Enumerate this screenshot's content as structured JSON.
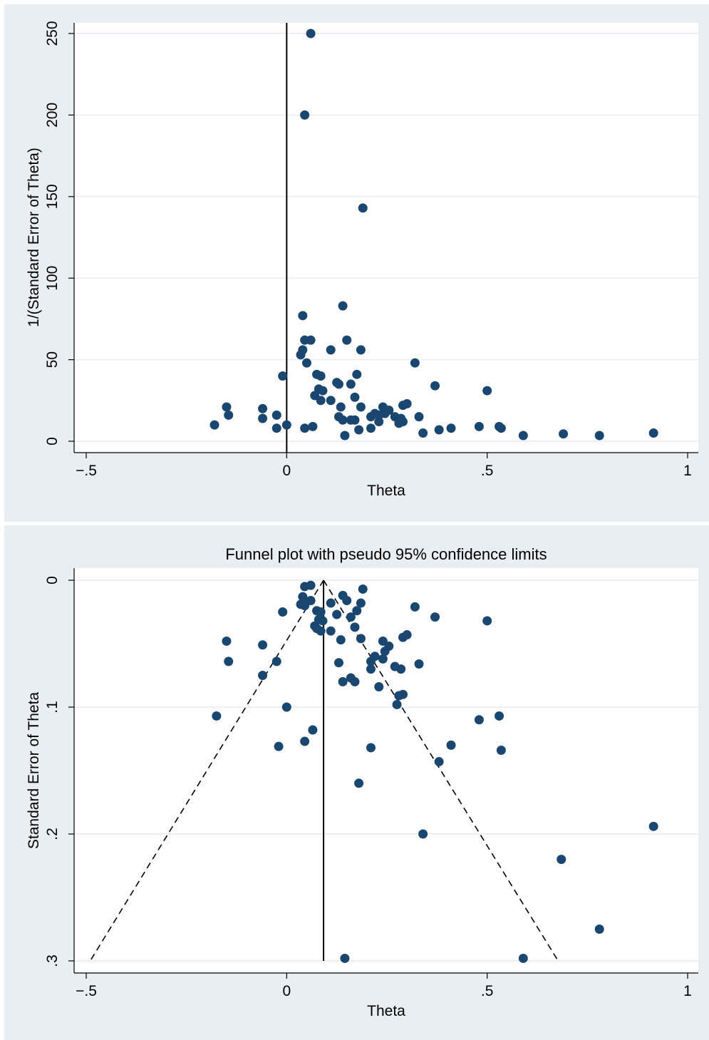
{
  "chart_data": [
    {
      "type": "scatter",
      "title": "",
      "xlabel": "Theta",
      "ylabel": "1/(Standard Error of Theta)",
      "xlim": [
        -0.5,
        1
      ],
      "ylim": [
        0,
        250
      ],
      "xticks": [
        -0.5,
        0,
        0.5,
        1
      ],
      "xtick_labels": [
        "−.5",
        "0",
        ".5",
        "1"
      ],
      "yticks": [
        0,
        50,
        100,
        150,
        200,
        250
      ],
      "ytick_labels": [
        "0",
        "50",
        "100",
        "150",
        "200",
        "250"
      ],
      "grid": true,
      "reference_line_x": 0,
      "marker_color": "#1a476f",
      "points": [
        {
          "x": 0.06,
          "y": 250
        },
        {
          "x": 0.045,
          "y": 200
        },
        {
          "x": 0.19,
          "y": 143
        },
        {
          "x": 0.14,
          "y": 83
        },
        {
          "x": 0.04,
          "y": 77
        },
        {
          "x": 0.045,
          "y": 62
        },
        {
          "x": 0.06,
          "y": 62
        },
        {
          "x": 0.15,
          "y": 62
        },
        {
          "x": 0.11,
          "y": 56
        },
        {
          "x": 0.185,
          "y": 56
        },
        {
          "x": 0.04,
          "y": 56
        },
        {
          "x": 0.035,
          "y": 53
        },
        {
          "x": 0.05,
          "y": 48
        },
        {
          "x": 0.32,
          "y": 48
        },
        {
          "x": 0.075,
          "y": 41
        },
        {
          "x": 0.085,
          "y": 40
        },
        {
          "x": 0.175,
          "y": 41
        },
        {
          "x": -0.01,
          "y": 40
        },
        {
          "x": 0.125,
          "y": 36
        },
        {
          "x": 0.13,
          "y": 35
        },
        {
          "x": 0.16,
          "y": 35
        },
        {
          "x": 0.37,
          "y": 34
        },
        {
          "x": 0.08,
          "y": 32
        },
        {
          "x": 0.09,
          "y": 31
        },
        {
          "x": 0.5,
          "y": 31
        },
        {
          "x": 0.07,
          "y": 28
        },
        {
          "x": 0.17,
          "y": 27
        },
        {
          "x": 0.085,
          "y": 25
        },
        {
          "x": 0.11,
          "y": 25
        },
        {
          "x": 0.135,
          "y": 21
        },
        {
          "x": 0.185,
          "y": 21
        },
        {
          "x": 0.24,
          "y": 21
        },
        {
          "x": 0.29,
          "y": 22
        },
        {
          "x": 0.3,
          "y": 23
        },
        {
          "x": -0.15,
          "y": 21
        },
        {
          "x": -0.06,
          "y": 20
        },
        {
          "x": 0.255,
          "y": 19
        },
        {
          "x": 0.22,
          "y": 17
        },
        {
          "x": 0.245,
          "y": 17
        },
        {
          "x": 0.21,
          "y": 15
        },
        {
          "x": 0.23,
          "y": 16
        },
        {
          "x": 0.27,
          "y": 15
        },
        {
          "x": 0.33,
          "y": 15
        },
        {
          "x": 0.285,
          "y": 14
        },
        {
          "x": -0.145,
          "y": 16
        },
        {
          "x": -0.025,
          "y": 16
        },
        {
          "x": -0.06,
          "y": 14
        },
        {
          "x": 0.13,
          "y": 15
        },
        {
          "x": 0.14,
          "y": 13
        },
        {
          "x": 0.16,
          "y": 13
        },
        {
          "x": 0.17,
          "y": 13
        },
        {
          "x": 0.23,
          "y": 12
        },
        {
          "x": 0.28,
          "y": 11
        },
        {
          "x": 0.29,
          "y": 12
        },
        {
          "x": -0.18,
          "y": 10
        },
        {
          "x": 0.0,
          "y": 10
        },
        {
          "x": -0.025,
          "y": 8
        },
        {
          "x": 0.045,
          "y": 8
        },
        {
          "x": 0.065,
          "y": 9
        },
        {
          "x": 0.21,
          "y": 8
        },
        {
          "x": 0.18,
          "y": 7
        },
        {
          "x": 0.38,
          "y": 7
        },
        {
          "x": 0.41,
          "y": 8
        },
        {
          "x": 0.48,
          "y": 9
        },
        {
          "x": 0.53,
          "y": 9
        },
        {
          "x": 0.535,
          "y": 8
        },
        {
          "x": 0.145,
          "y": 3.5
        },
        {
          "x": 0.34,
          "y": 5
        },
        {
          "x": 0.59,
          "y": 3.5
        },
        {
          "x": 0.69,
          "y": 4.5
        },
        {
          "x": 0.78,
          "y": 3.5
        },
        {
          "x": 0.915,
          "y": 5
        }
      ]
    },
    {
      "type": "scatter",
      "title": "Funnel plot with pseudo 95% confidence limits",
      "xlabel": "Theta",
      "ylabel": "Standard Error of Theta",
      "xlim": [
        -0.5,
        1
      ],
      "ylim": [
        0,
        0.3
      ],
      "y_reversed": true,
      "xticks": [
        -0.5,
        0,
        0.5,
        1
      ],
      "xtick_labels": [
        "−.5",
        "0",
        ".5",
        "1"
      ],
      "yticks": [
        0,
        0.1,
        0.2,
        0.3
      ],
      "ytick_labels": [
        "0",
        ".1",
        ".2",
        ".3"
      ],
      "grid": true,
      "pooled_estimate_line": {
        "x": 0.092,
        "se_from": 0,
        "se_to": 0.3
      },
      "confidence_limits": {
        "apex": [
          0.092,
          0
        ],
        "lower": [
          -0.49,
          0.3
        ],
        "upper": [
          0.677,
          0.3
        ],
        "style": "dashed"
      },
      "marker_color": "#1a476f",
      "points": [
        {
          "x": 0.045,
          "y": 0.005
        },
        {
          "x": 0.06,
          "y": 0.004
        },
        {
          "x": 0.19,
          "y": 0.007
        },
        {
          "x": 0.04,
          "y": 0.013
        },
        {
          "x": 0.14,
          "y": 0.012
        },
        {
          "x": 0.15,
          "y": 0.016
        },
        {
          "x": 0.045,
          "y": 0.016
        },
        {
          "x": 0.06,
          "y": 0.016
        },
        {
          "x": 0.035,
          "y": 0.019
        },
        {
          "x": 0.045,
          "y": 0.02
        },
        {
          "x": 0.11,
          "y": 0.018
        },
        {
          "x": 0.185,
          "y": 0.018
        },
        {
          "x": 0.32,
          "y": 0.021
        },
        {
          "x": -0.01,
          "y": 0.025
        },
        {
          "x": 0.075,
          "y": 0.024
        },
        {
          "x": 0.085,
          "y": 0.025
        },
        {
          "x": 0.175,
          "y": 0.024
        },
        {
          "x": 0.125,
          "y": 0.027
        },
        {
          "x": 0.16,
          "y": 0.029
        },
        {
          "x": 0.37,
          "y": 0.029
        },
        {
          "x": 0.5,
          "y": 0.032
        },
        {
          "x": 0.08,
          "y": 0.031
        },
        {
          "x": 0.09,
          "y": 0.032
        },
        {
          "x": 0.07,
          "y": 0.036
        },
        {
          "x": 0.17,
          "y": 0.037
        },
        {
          "x": 0.085,
          "y": 0.04
        },
        {
          "x": 0.11,
          "y": 0.04
        },
        {
          "x": 0.075,
          "y": 0.038
        },
        {
          "x": 0.135,
          "y": 0.047
        },
        {
          "x": 0.185,
          "y": 0.046
        },
        {
          "x": 0.24,
          "y": 0.048
        },
        {
          "x": 0.29,
          "y": 0.045
        },
        {
          "x": 0.3,
          "y": 0.043
        },
        {
          "x": -0.15,
          "y": 0.048
        },
        {
          "x": -0.06,
          "y": 0.051
        },
        {
          "x": 0.255,
          "y": 0.052
        },
        {
          "x": 0.245,
          "y": 0.056
        },
        {
          "x": 0.22,
          "y": 0.06
        },
        {
          "x": 0.21,
          "y": 0.064
        },
        {
          "x": 0.24,
          "y": 0.062
        },
        {
          "x": 0.27,
          "y": 0.068
        },
        {
          "x": 0.285,
          "y": 0.07
        },
        {
          "x": 0.33,
          "y": 0.066
        },
        {
          "x": 0.21,
          "y": 0.07
        },
        {
          "x": -0.145,
          "y": 0.064
        },
        {
          "x": -0.025,
          "y": 0.064
        },
        {
          "x": 0.13,
          "y": 0.065
        },
        {
          "x": -0.06,
          "y": 0.075
        },
        {
          "x": 0.16,
          "y": 0.077
        },
        {
          "x": 0.14,
          "y": 0.08
        },
        {
          "x": 0.17,
          "y": 0.08
        },
        {
          "x": 0.23,
          "y": 0.084
        },
        {
          "x": 0.29,
          "y": 0.09
        },
        {
          "x": 0.28,
          "y": 0.091
        },
        {
          "x": 0.275,
          "y": 0.098
        },
        {
          "x": 0.0,
          "y": 0.1
        },
        {
          "x": -0.175,
          "y": 0.107
        },
        {
          "x": 0.53,
          "y": 0.107
        },
        {
          "x": 0.48,
          "y": 0.11
        },
        {
          "x": 0.065,
          "y": 0.118
        },
        {
          "x": 0.045,
          "y": 0.127
        },
        {
          "x": -0.02,
          "y": 0.131
        },
        {
          "x": 0.21,
          "y": 0.132
        },
        {
          "x": 0.41,
          "y": 0.13
        },
        {
          "x": 0.535,
          "y": 0.134
        },
        {
          "x": 0.38,
          "y": 0.143
        },
        {
          "x": 0.18,
          "y": 0.16
        },
        {
          "x": 0.34,
          "y": 0.2
        },
        {
          "x": 0.915,
          "y": 0.194
        },
        {
          "x": 0.685,
          "y": 0.22
        },
        {
          "x": 0.78,
          "y": 0.275
        },
        {
          "x": 0.145,
          "y": 0.298
        },
        {
          "x": 0.59,
          "y": 0.298
        }
      ]
    }
  ]
}
